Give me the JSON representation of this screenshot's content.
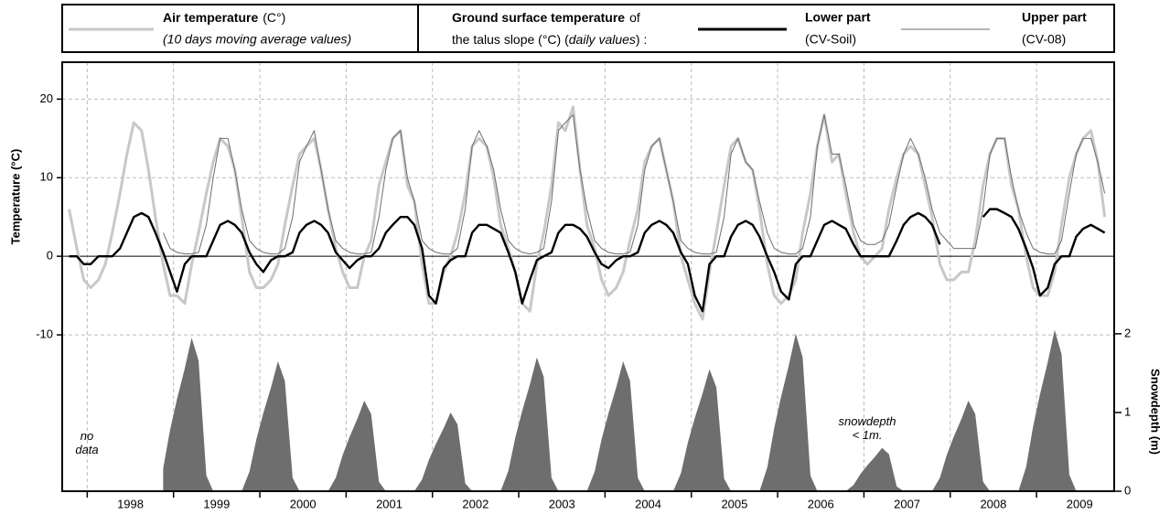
{
  "chart_data": {
    "type": "line",
    "legend_heading": {
      "bold": "Ground surface temperature",
      "rest": "of",
      "line2": "the talus slope (°C) (",
      "italic": "daily values",
      "end": ") :"
    },
    "y_label": "Temperature (°C)",
    "y2_label": "Snowdepth (m)",
    "xlim": [
      1997.71,
      2009.9
    ],
    "xticks": [
      1998,
      1999,
      2000,
      2001,
      2002,
      2003,
      2004,
      2005,
      2006,
      2007,
      2008,
      2009
    ],
    "ylim": [
      -29.9,
      24.7
    ],
    "yticks": [
      -10,
      0,
      10,
      20
    ],
    "y2lim": [
      0,
      5.45
    ],
    "y2ticks": [
      0,
      1,
      2
    ],
    "grid": true,
    "annotations": [
      {
        "lines": [
          "no",
          "data"
        ]
      },
      {
        "lines": [
          "snowdepth",
          "< 1m."
        ]
      }
    ],
    "x": [
      1997.79,
      1997.88,
      1997.96,
      1998.04,
      1998.13,
      1998.21,
      1998.29,
      1998.38,
      1998.46,
      1998.54,
      1998.63,
      1998.71,
      1998.79,
      1998.88,
      1998.96,
      1999.04,
      1999.13,
      1999.21,
      1999.29,
      1999.38,
      1999.46,
      1999.54,
      1999.63,
      1999.71,
      1999.79,
      1999.88,
      1999.96,
      2000.04,
      2000.13,
      2000.21,
      2000.29,
      2000.38,
      2000.46,
      2000.54,
      2000.63,
      2000.71,
      2000.79,
      2000.88,
      2000.96,
      2001.04,
      2001.13,
      2001.21,
      2001.29,
      2001.38,
      2001.46,
      2001.54,
      2001.63,
      2001.71,
      2001.79,
      2001.88,
      2001.96,
      2002.04,
      2002.13,
      2002.21,
      2002.29,
      2002.38,
      2002.46,
      2002.54,
      2002.63,
      2002.71,
      2002.79,
      2002.88,
      2002.96,
      2003.04,
      2003.13,
      2003.21,
      2003.29,
      2003.38,
      2003.46,
      2003.54,
      2003.63,
      2003.71,
      2003.79,
      2003.88,
      2003.96,
      2004.04,
      2004.13,
      2004.21,
      2004.29,
      2004.38,
      2004.46,
      2004.54,
      2004.63,
      2004.71,
      2004.79,
      2004.88,
      2004.96,
      2005.04,
      2005.13,
      2005.21,
      2005.29,
      2005.38,
      2005.46,
      2005.54,
      2005.63,
      2005.71,
      2005.79,
      2005.88,
      2005.96,
      2006.04,
      2006.13,
      2006.21,
      2006.29,
      2006.38,
      2006.46,
      2006.54,
      2006.63,
      2006.71,
      2006.79,
      2006.88,
      2006.96,
      2007.04,
      2007.13,
      2007.21,
      2007.29,
      2007.38,
      2007.46,
      2007.54,
      2007.63,
      2007.71,
      2007.79,
      2007.88,
      2007.96,
      2008.04,
      2008.13,
      2008.21,
      2008.29,
      2008.38,
      2008.46,
      2008.54,
      2008.63,
      2008.71,
      2008.79,
      2008.88,
      2008.96,
      2009.04,
      2009.13,
      2009.21,
      2009.29,
      2009.38,
      2009.46,
      2009.54,
      2009.63,
      2009.71,
      2009.79
    ],
    "series": [
      {
        "name": "Air temperature",
        "unit": "(C°)",
        "note": "(10 days moving average values)",
        "color": "#c8c8c8",
        "values": [
          6,
          1,
          -3,
          -4,
          -3,
          -1,
          3,
          8,
          13,
          17,
          16,
          11,
          5,
          -1,
          -5,
          -5,
          -6,
          -1,
          3,
          8,
          12,
          15,
          14,
          11,
          5,
          -2,
          -4,
          -4,
          -3,
          -1,
          4,
          9,
          13,
          14,
          15,
          11,
          6,
          1,
          -2,
          -4,
          -4,
          0,
          2,
          9,
          12,
          15,
          16,
          9,
          7,
          -1,
          -6,
          -6,
          -2,
          0,
          3,
          8,
          14,
          15,
          14,
          10,
          4,
          1,
          -2,
          -6,
          -7,
          -1,
          3,
          9,
          17,
          16,
          19,
          11,
          4,
          1,
          -3,
          -5,
          -4,
          -2,
          2,
          6,
          12,
          14,
          15,
          11,
          7,
          0,
          -3,
          -6,
          -8,
          -2,
          3,
          9,
          14,
          15,
          12,
          11,
          6,
          -1,
          -5,
          -6,
          -5,
          -3,
          3,
          8,
          14,
          18,
          12,
          13,
          8,
          3,
          0,
          -1,
          0,
          1,
          6,
          10,
          13,
          14,
          13,
          9,
          5,
          -1,
          -3,
          -3,
          -2,
          -2,
          2,
          9,
          13,
          15,
          15,
          9,
          6,
          0,
          -4,
          -5,
          -5,
          -2,
          4,
          10,
          13,
          15,
          16,
          12,
          5
        ]
      },
      {
        "name": "Upper part",
        "note": "(CV-08)",
        "color": "#6e6e6e",
        "values": [
          null,
          null,
          null,
          null,
          null,
          null,
          null,
          null,
          null,
          null,
          null,
          null,
          null,
          3,
          1,
          0.5,
          0.3,
          0.3,
          0.5,
          4,
          10,
          15,
          15,
          11,
          6,
          2,
          1,
          0.5,
          0.3,
          0.3,
          1,
          5,
          12,
          14,
          16,
          11,
          6,
          2,
          1,
          0.5,
          0.3,
          0.3,
          0.5,
          5,
          11,
          15,
          16,
          10,
          7,
          2,
          1,
          0.5,
          0.3,
          0.3,
          1,
          6,
          14,
          16,
          14,
          11,
          6,
          2,
          1,
          0.5,
          0.3,
          0.5,
          1,
          7,
          16,
          17,
          18,
          11,
          6,
          2,
          1,
          0.5,
          0.3,
          0.3,
          0.5,
          4,
          11,
          14,
          15,
          11,
          7,
          2,
          1,
          0.5,
          0.3,
          0.3,
          0.5,
          5,
          13,
          15,
          12,
          11,
          7,
          3,
          1,
          0.5,
          0.3,
          0.3,
          1,
          5,
          14,
          18,
          13,
          13,
          9,
          4,
          2,
          1.5,
          1.5,
          2,
          4,
          9,
          13,
          15,
          13,
          10,
          6,
          3,
          2,
          1,
          1,
          1,
          1,
          6,
          13,
          15,
          15,
          10,
          6,
          3,
          1,
          0.5,
          0.3,
          0.3,
          2,
          8,
          13,
          15,
          15,
          12,
          8
        ]
      },
      {
        "name": "Lower part",
        "note": "(CV-Soil)",
        "color": "#000000",
        "values": [
          0,
          0,
          -1,
          -1,
          0,
          0,
          0,
          1,
          3,
          5,
          5.5,
          5,
          3,
          0.5,
          -2,
          -4.5,
          -1,
          0,
          0,
          0,
          2,
          4,
          4.5,
          4,
          3,
          0.5,
          -1,
          -2,
          -0.5,
          0,
          0,
          0.5,
          3,
          4,
          4.5,
          4,
          3,
          0.5,
          -0.5,
          -1.5,
          -0.5,
          0,
          0,
          1,
          3,
          4,
          5,
          5,
          4,
          1,
          -5,
          -6,
          -1.5,
          -0.5,
          0,
          0,
          3,
          4,
          4,
          3.5,
          3,
          0.5,
          -2,
          -6,
          -3,
          -0.5,
          0,
          0.5,
          3,
          4,
          4,
          3.5,
          2.5,
          0.5,
          -1,
          -1.5,
          -0.5,
          0,
          0,
          0.5,
          3,
          4,
          4.5,
          4,
          3,
          0.5,
          -1,
          -5,
          -7,
          -1,
          0,
          0,
          2.5,
          4,
          4.5,
          4,
          2.5,
          0,
          -2,
          -4.5,
          -5.5,
          -1,
          0,
          0,
          2,
          4,
          4.5,
          4,
          3.5,
          1.5,
          0,
          0,
          0,
          0,
          0,
          2,
          4,
          5,
          5.5,
          5,
          4,
          1.5,
          null,
          null,
          null,
          null,
          null,
          5,
          6,
          6,
          5.5,
          5,
          3.5,
          1,
          -1.5,
          -5,
          -4,
          -1,
          0,
          0,
          2.5,
          3.5,
          4,
          3.5,
          3
        ]
      },
      {
        "type": "area",
        "axis": "y2",
        "color": "#6e6e6e",
        "values": [
          null,
          null,
          null,
          null,
          null,
          null,
          null,
          null,
          null,
          null,
          null,
          null,
          null,
          0.29,
          0.78,
          1.17,
          1.56,
          1.95,
          1.66,
          0.2,
          0,
          0,
          0,
          0,
          0,
          0.25,
          0.66,
          0.99,
          1.32,
          1.65,
          1.4,
          0.17,
          0,
          0,
          0,
          0,
          0,
          0.17,
          0.46,
          0.69,
          0.92,
          1.15,
          0.98,
          0.12,
          0,
          0,
          0,
          0,
          0,
          0.15,
          0.4,
          0.6,
          0.8,
          1.0,
          0.85,
          0.1,
          0,
          0,
          0,
          0,
          0,
          0.26,
          0.68,
          1.02,
          1.36,
          1.7,
          1.45,
          0.17,
          0,
          0,
          0,
          0,
          0,
          0.25,
          0.66,
          0.99,
          1.32,
          1.65,
          1.4,
          0.17,
          0,
          0,
          0,
          0,
          0,
          0.23,
          0.62,
          0.93,
          1.24,
          1.55,
          1.32,
          0.16,
          0,
          0,
          0,
          0,
          0,
          0.3,
          0.8,
          1.2,
          1.6,
          2.0,
          1.7,
          0.2,
          0,
          0,
          0,
          0,
          0,
          0.08,
          0.22,
          0.33,
          0.44,
          0.55,
          0.47,
          0.06,
          0,
          0,
          0,
          0,
          0,
          0.17,
          0.46,
          0.69,
          0.92,
          1.15,
          0.98,
          0.12,
          0,
          0,
          0,
          0,
          0,
          0.31,
          0.82,
          1.23,
          1.64,
          2.05,
          1.74,
          0.21,
          0,
          0,
          0,
          0,
          0
        ]
      }
    ]
  }
}
